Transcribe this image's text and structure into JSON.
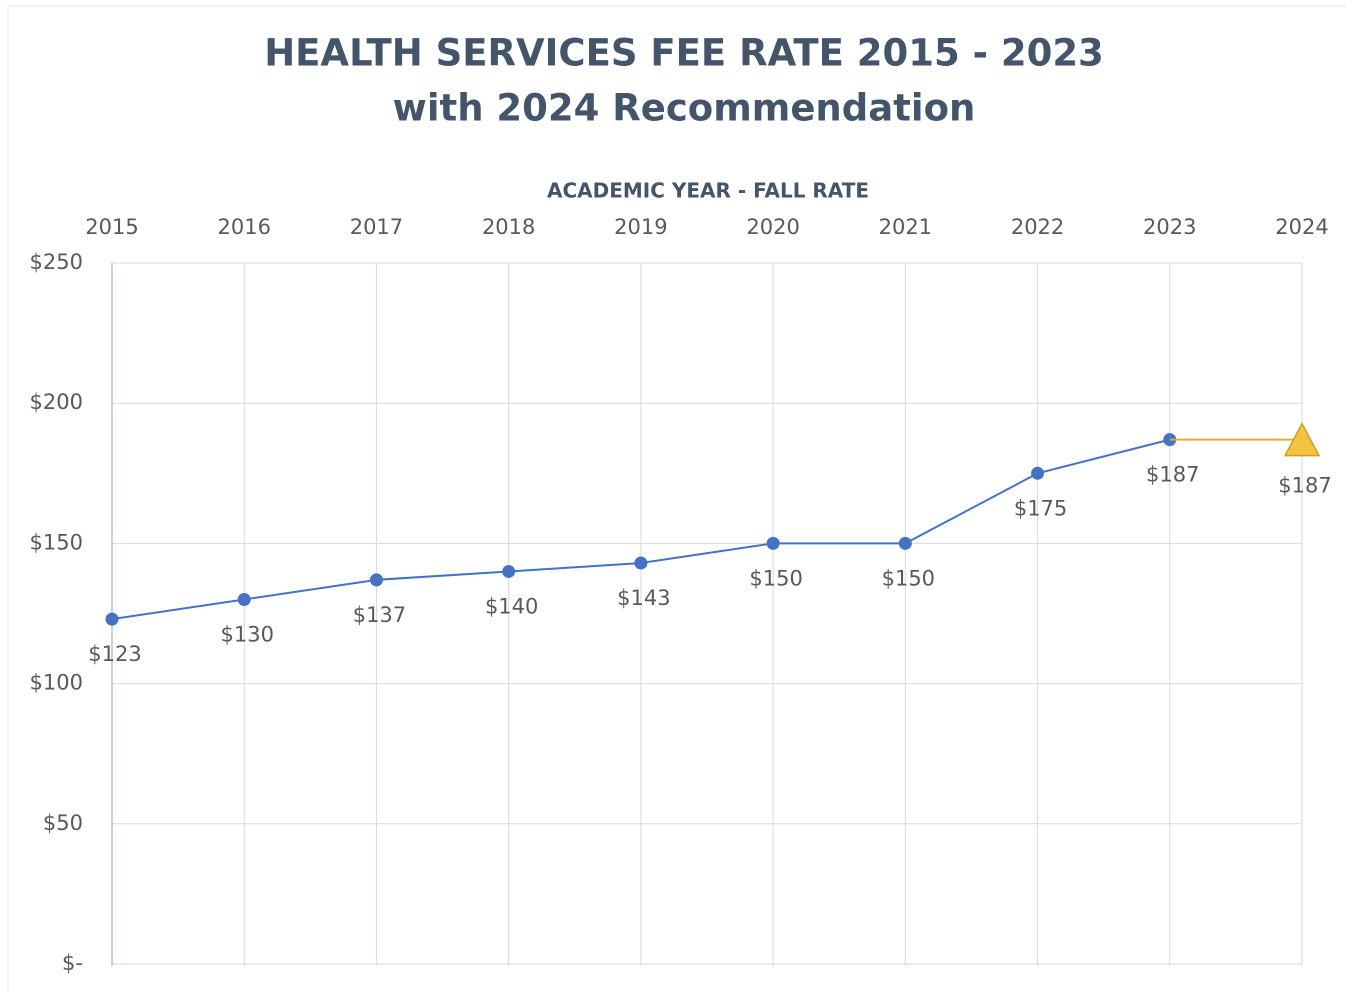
{
  "chart_data": {
    "type": "line",
    "title": "HEALTH SERVICES FEE RATE 2015 - 2023",
    "subtitle": "with 2024 Recommendation",
    "x_label": "ACADEMIC YEAR - FALL RATE",
    "categories": [
      "2015",
      "2016",
      "2017",
      "2018",
      "2019",
      "2020",
      "2021",
      "2022",
      "2023",
      "2024"
    ],
    "series": [
      {
        "color": "#4472c4",
        "values": [
          123,
          130,
          137,
          140,
          143,
          150,
          150,
          175,
          187,
          null
        ],
        "value_labels": [
          "$123",
          "$130",
          "$137",
          "$140",
          "$143",
          "$150",
          "$150",
          "$175",
          "$187",
          null
        ]
      },
      {
        "color": "#f5c342",
        "values": [
          null,
          null,
          null,
          null,
          null,
          null,
          null,
          null,
          187,
          187
        ],
        "value_labels": [
          null,
          null,
          null,
          null,
          null,
          null,
          null,
          null,
          null,
          "$187"
        ]
      }
    ],
    "ylim": [
      0,
      250
    ],
    "yticks": [
      {
        "value": 0,
        "label": "$-"
      },
      {
        "value": 50,
        "label": "$50"
      },
      {
        "value": 100,
        "label": "$100"
      },
      {
        "value": 150,
        "label": "$150"
      },
      {
        "value": 200,
        "label": "$200"
      },
      {
        "value": 250,
        "label": "$250"
      }
    ],
    "grid": true
  }
}
